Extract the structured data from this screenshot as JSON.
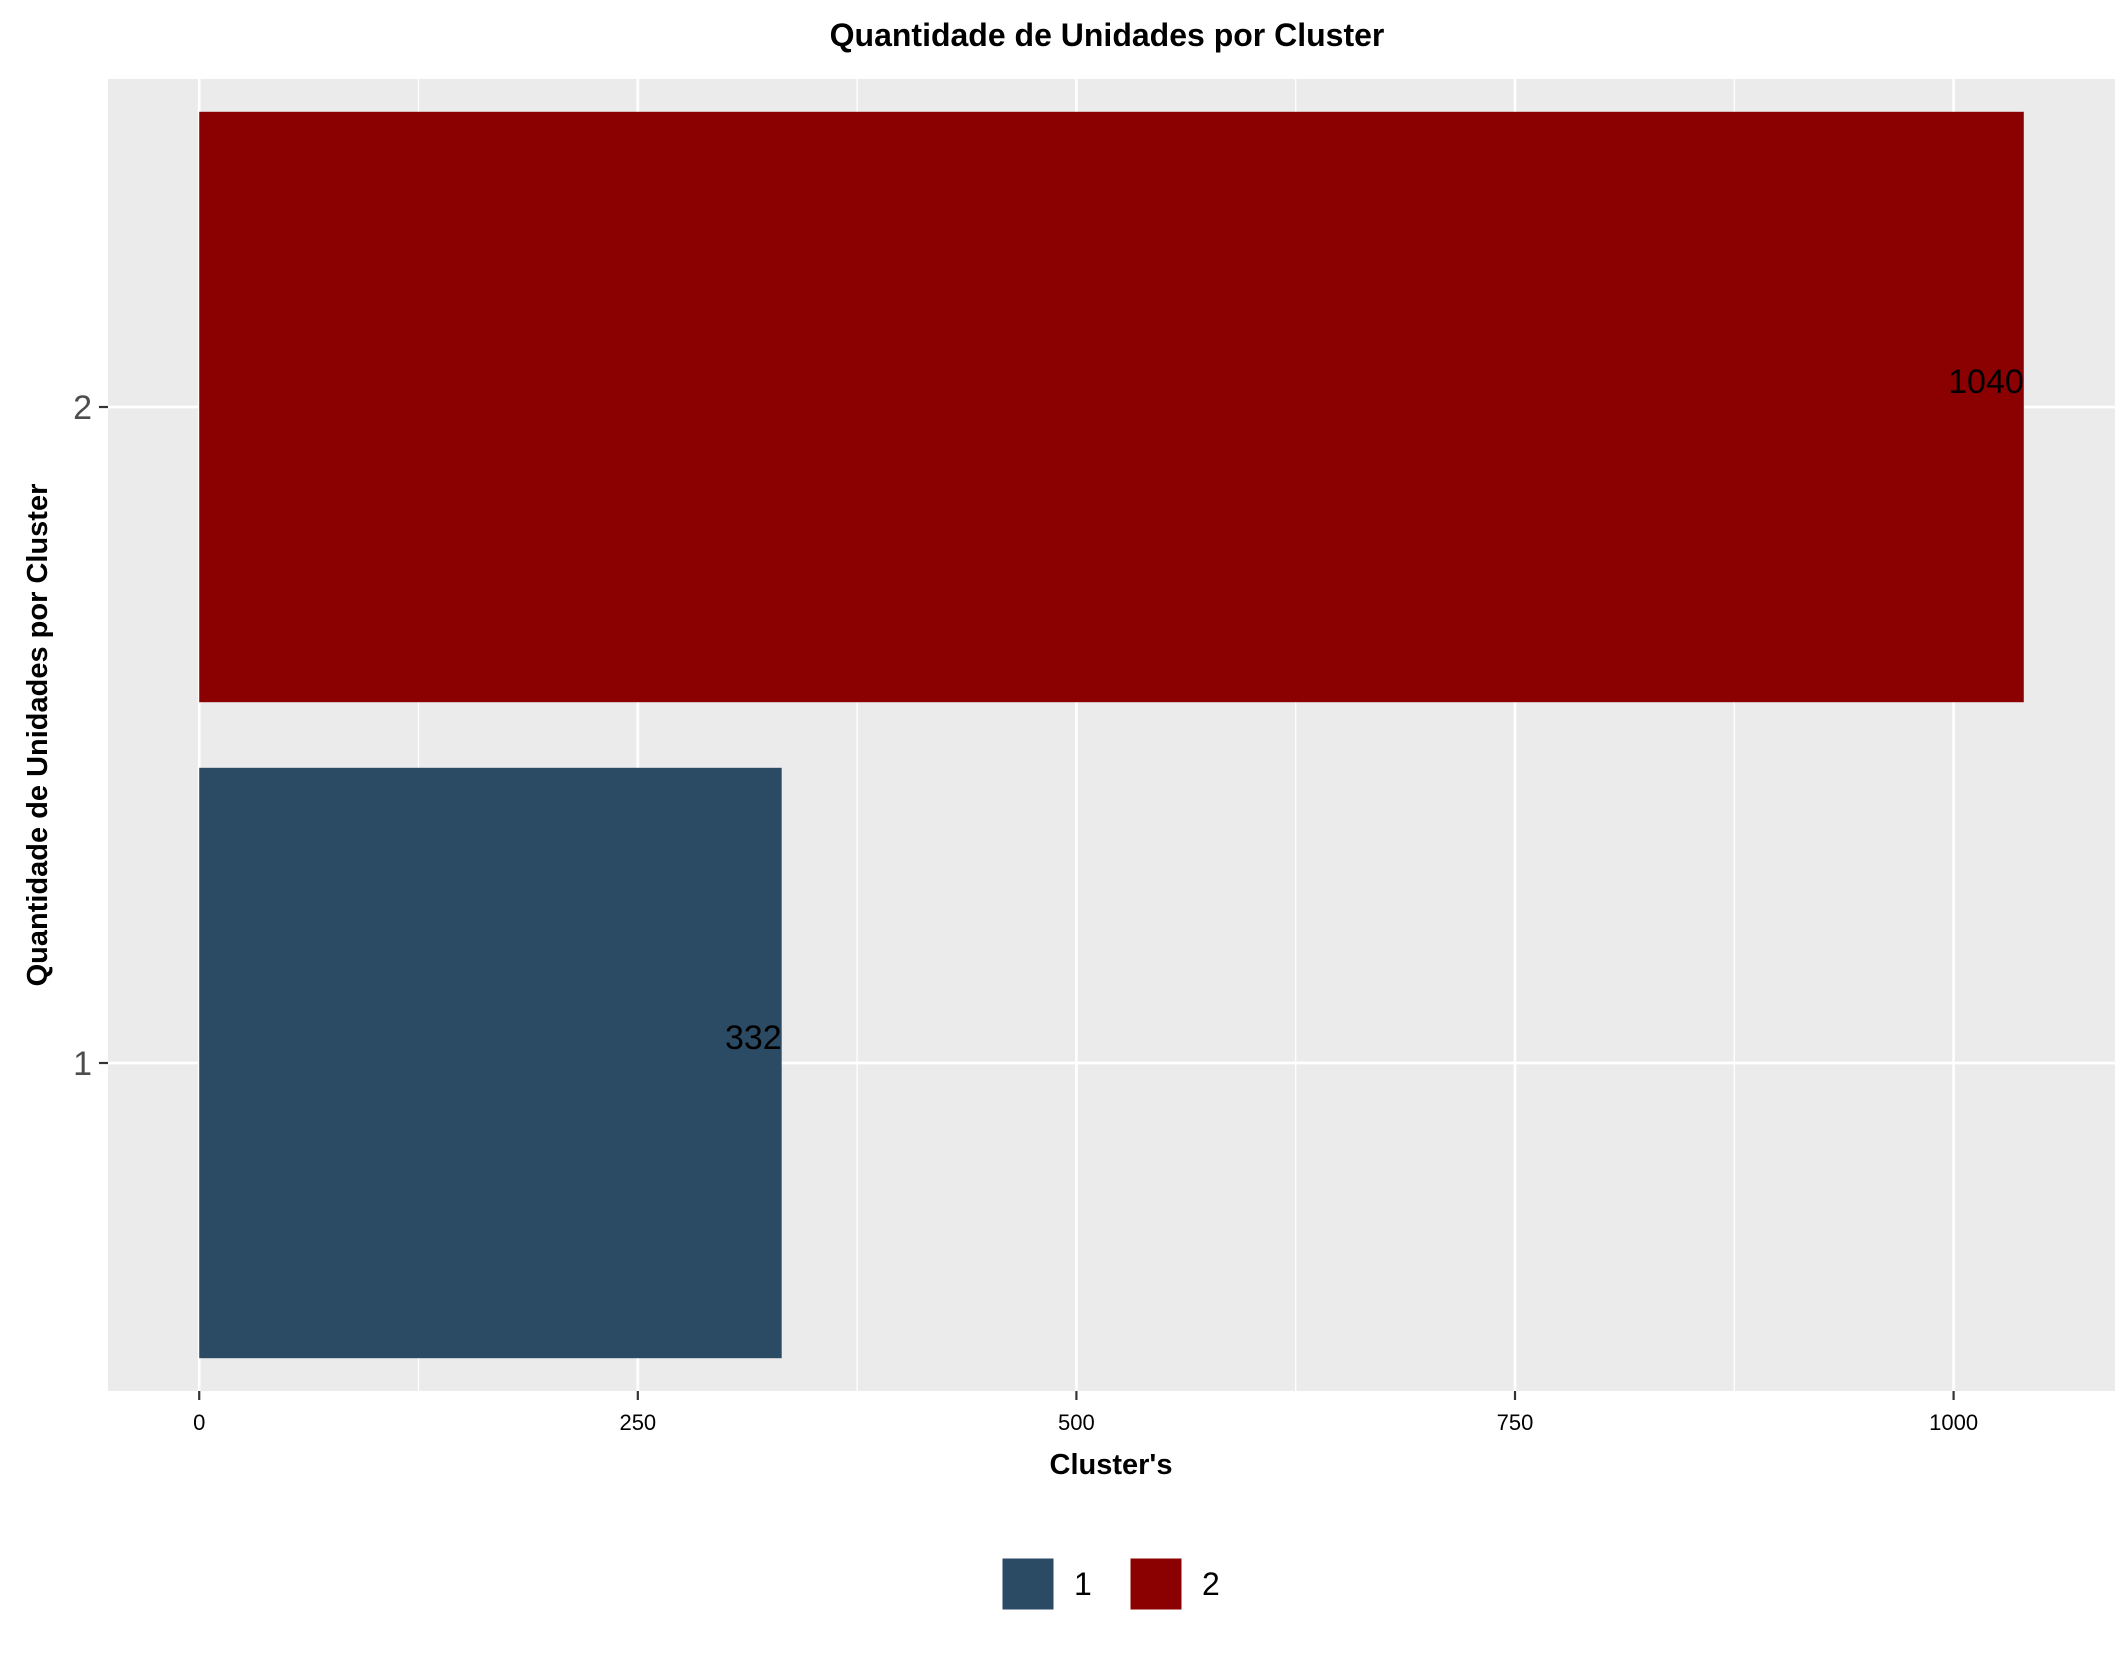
{
  "chart_data": {
    "type": "bar",
    "orientation": "horizontal",
    "title": "Quantidade de Unidades por Cluster",
    "xlabel": "Cluster's",
    "ylabel": "Quantidade de Unidades por Cluster",
    "categories": [
      "1",
      "2"
    ],
    "values": [
      332,
      1040
    ],
    "data_labels": [
      "332",
      "1040"
    ],
    "colors": [
      "#2B4A64",
      "#8B0000"
    ],
    "xlim": [
      -52,
      1092
    ],
    "x_ticks": [
      0,
      250,
      500,
      750,
      1000
    ],
    "x_tick_labels": [
      "0",
      "250",
      "500",
      "750",
      "1000"
    ],
    "grid": true,
    "panel_background": "#EBEBEB",
    "grid_color": "#FFFFFF",
    "legend": {
      "position": "bottom",
      "entries": [
        "1",
        "2"
      ]
    }
  }
}
